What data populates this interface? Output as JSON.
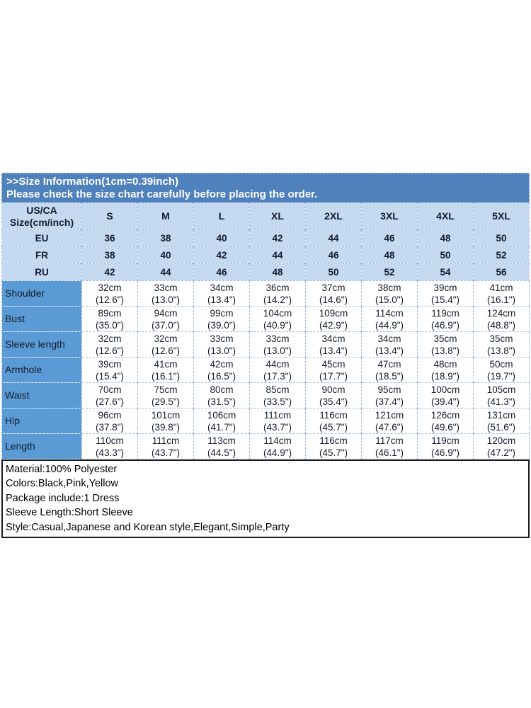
{
  "colors": {
    "banner_blue": "#4f81bd",
    "light_blue_row": "#c5d9f1",
    "label_column_blue": "#5b9bd5",
    "grid_line": "#9cbde0"
  },
  "header": {
    "title": ">>Size Information(1cm=0.39inch)",
    "subtitle": "Please check the size chart carefully before placing the order."
  },
  "table": {
    "corner_header": "US/CA\nSize(cm/inch)",
    "size_columns": [
      "S",
      "M",
      "L",
      "XL",
      "2XL",
      "3XL",
      "4XL",
      "5XL"
    ],
    "region_rows": [
      {
        "label": "EU",
        "values": [
          "36",
          "38",
          "40",
          "42",
          "44",
          "46",
          "48",
          "50"
        ]
      },
      {
        "label": "FR",
        "values": [
          "38",
          "40",
          "42",
          "44",
          "46",
          "48",
          "50",
          "52"
        ]
      },
      {
        "label": "RU",
        "values": [
          "42",
          "44",
          "46",
          "48",
          "50",
          "52",
          "54",
          "56"
        ]
      }
    ],
    "measurement_rows": [
      {
        "label": "Shoulder",
        "cells": [
          "32cm\n(12.6\")",
          "33cm\n(13.0\")",
          "34cm\n(13.4\")",
          "36cm\n(14.2\")",
          "37cm\n(14.6\")",
          "38cm\n(15.0\")",
          "39cm\n(15.4\")",
          "41cm\n(16.1\")"
        ]
      },
      {
        "label": "Bust",
        "cells": [
          "89cm\n(35.0\")",
          "94cm\n(37.0\")",
          "99cm\n(39.0\")",
          "104cm\n(40.9\")",
          "109cm\n(42.9\")",
          "114cm\n(44.9\")",
          "119cm\n(46.9\")",
          "124cm\n(48.8\")"
        ]
      },
      {
        "label": "Sleeve length",
        "cells": [
          "32cm\n(12.6\")",
          "32cm\n(12.6\")",
          "33cm\n(13.0\")",
          "33cm\n(13.0\")",
          "34cm\n(13.4\")",
          "34cm\n(13.4\")",
          "35cm\n(13.8\")",
          "35cm\n(13.8\")"
        ]
      },
      {
        "label": "Armhole",
        "cells": [
          "39cm\n(15.4\")",
          "41cm\n(16.1\")",
          "42cm\n(16.5\")",
          "44cm\n(17.3\")",
          "45cm\n(17.7\")",
          "47cm\n(18.5\")",
          "48cm\n(18.9\")",
          "50cm\n(19.7\")"
        ]
      },
      {
        "label": "Waist",
        "cells": [
          "70cm\n(27.6\")",
          "75cm\n(29.5\")",
          "80cm\n(31.5\")",
          "85cm\n(33.5\")",
          "90cm\n(35.4\")",
          "95cm\n(37.4\")",
          "100cm\n(39.4\")",
          "105cm\n(41.3\")"
        ]
      },
      {
        "label": "Hip",
        "cells": [
          "96cm\n(37.8\")",
          "101cm\n(39.8\")",
          "106cm\n(41.7\")",
          "111cm\n(43.7\")",
          "116cm\n(45.7\")",
          "121cm\n(47.6\")",
          "126cm\n(49.6\")",
          "131cm\n(51.6\")"
        ]
      },
      {
        "label": "Length",
        "cells": [
          "110cm\n(43.3\")",
          "111cm\n(43.7\")",
          "113cm\n(44.5\")",
          "114cm\n(44.9\")",
          "116cm\n(45.7\")",
          "117cm\n(46.1\")",
          "119cm\n(46.9\")",
          "120cm\n(47.2\")"
        ]
      }
    ]
  },
  "product_info": {
    "lines": [
      "Material:100% Polyester",
      "Colors:Black,Pink,Yellow",
      "Package include:1 Dress",
      "Sleeve Length:Short Sleeve",
      "Style:Casual,Japanese and Korean style,Elegant,Simple,Party"
    ]
  }
}
